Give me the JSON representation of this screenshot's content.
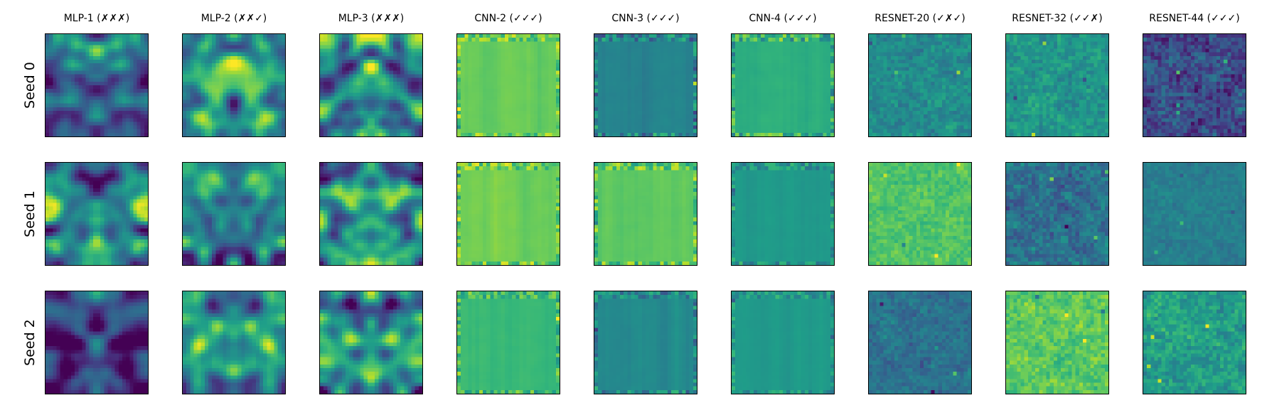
{
  "chart_data": {
    "type": "heatmap",
    "colormap": "viridis",
    "grid": false,
    "axes_ticks": false,
    "columns": [
      "MLP-1 (✗✗✗)",
      "MLP-2 (✗✗✓)",
      "MLP-3 (✗✗✗)",
      "CNN-2 (✓✓✓)",
      "CNN-3 (✓✓✓)",
      "CNN-4 (✓✓✓)",
      "RESNET-20 (✓✗✓)",
      "RESNET-32 (✓✓✗)",
      "RESNET-44 (✓✓✓)"
    ],
    "rows": [
      "Seed 0",
      "Seed 1",
      "Seed 2"
    ],
    "panels": [
      [
        {
          "family": "mlp",
          "level": 0.4,
          "contrast": 0.9
        },
        {
          "family": "mlp",
          "level": 0.55,
          "contrast": 1.0
        },
        {
          "family": "mlp",
          "level": 0.55,
          "contrast": 1.0
        },
        {
          "family": "cnn",
          "level": 0.75,
          "contrast": 0.5
        },
        {
          "family": "cnn",
          "level": 0.55,
          "contrast": 0.7
        },
        {
          "family": "cnn",
          "level": 0.62,
          "contrast": 0.5
        },
        {
          "family": "resnet",
          "level": 0.55,
          "contrast": 0.6
        },
        {
          "family": "resnet",
          "level": 0.55,
          "contrast": 0.7
        },
        {
          "family": "resnet",
          "level": 0.38,
          "contrast": 0.7
        }
      ],
      [
        {
          "family": "mlp",
          "level": 0.48,
          "contrast": 1.0
        },
        {
          "family": "mlp",
          "level": 0.38,
          "contrast": 0.9
        },
        {
          "family": "mlp",
          "level": 0.45,
          "contrast": 1.0
        },
        {
          "family": "cnn",
          "level": 0.72,
          "contrast": 0.5
        },
        {
          "family": "cnn",
          "level": 0.68,
          "contrast": 0.5
        },
        {
          "family": "cnn",
          "level": 0.5,
          "contrast": 0.4
        },
        {
          "family": "resnet",
          "level": 0.75,
          "contrast": 0.6
        },
        {
          "family": "resnet",
          "level": 0.35,
          "contrast": 0.9
        },
        {
          "family": "resnet",
          "level": 0.48,
          "contrast": 0.4
        }
      ],
      [
        {
          "family": "mlp",
          "level": 0.25,
          "contrast": 0.8
        },
        {
          "family": "mlp",
          "level": 0.52,
          "contrast": 0.9
        },
        {
          "family": "mlp",
          "level": 0.42,
          "contrast": 1.0
        },
        {
          "family": "cnn",
          "level": 0.75,
          "contrast": 0.5
        },
        {
          "family": "cnn",
          "level": 0.42,
          "contrast": 0.5
        },
        {
          "family": "cnn",
          "level": 0.48,
          "contrast": 0.4
        },
        {
          "family": "resnet",
          "level": 0.38,
          "contrast": 0.7
        },
        {
          "family": "resnet",
          "level": 0.72,
          "contrast": 0.7
        },
        {
          "family": "resnet",
          "level": 0.68,
          "contrast": 0.6
        }
      ]
    ]
  }
}
